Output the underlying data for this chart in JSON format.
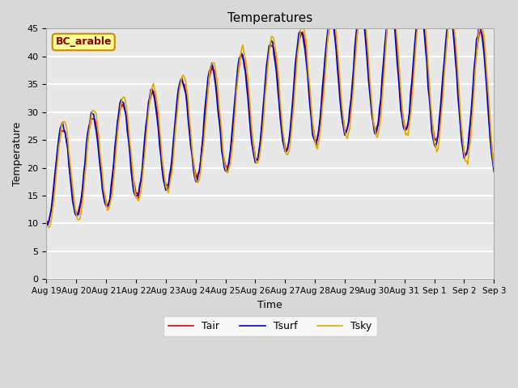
{
  "title": "Temperatures",
  "xlabel": "Time",
  "ylabel": "Temperature",
  "ylim": [
    0,
    45
  ],
  "legend_label": "BC_arable",
  "line_colors": {
    "Tair": "#dd0000",
    "Tsurf": "#0000cc",
    "Tsky": "#ddaa00"
  },
  "line_labels": [
    "Tair",
    "Tsurf",
    "Tsky"
  ],
  "xtick_labels": [
    "Aug 19",
    "Aug 20",
    "Aug 21",
    "Aug 22",
    "Aug 23",
    "Aug 24",
    "Aug 25",
    "Aug 26",
    "Aug 27",
    "Aug 28",
    "Aug 29",
    "Aug 30",
    "Aug 31",
    "Sep 1",
    "Sep 2",
    "Sep 3"
  ],
  "ytick_vals": [
    0,
    5,
    10,
    15,
    20,
    25,
    30,
    35,
    40,
    45
  ],
  "ytick_labels": [
    "0",
    "5",
    "10",
    "15",
    "20",
    "25",
    "30",
    "35",
    "40",
    "45"
  ],
  "bg_color": "#d8d8d8",
  "plot_bg_color": "#e8e8e8",
  "legend_box_color": "#ffff99",
  "legend_box_edge": "#cc8800"
}
